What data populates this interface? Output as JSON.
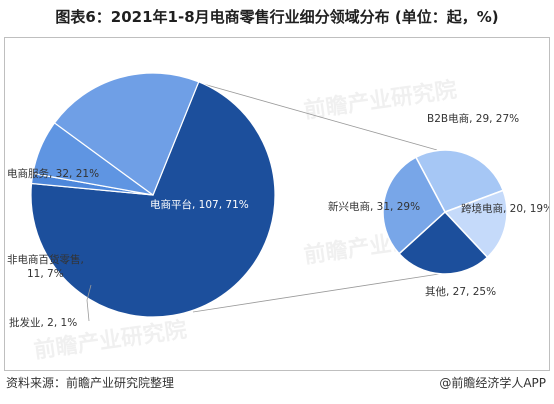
{
  "title": "图表6：2021年1-8月电商零售行业细分领域分布 (单位：起，%)",
  "footer": {
    "source": "资料来源：前瞻产业研究院整理",
    "brand": "@前瞻经济学人APP"
  },
  "watermark": "前瞻产业研究院",
  "colors": {
    "main_platform": "#1c4f9c",
    "service": "#6f9fe6",
    "non_ecommerce": "#5f95e2",
    "wholesale": "#4d87db",
    "b2b": "#a6c7f5",
    "cross_border": "#c5dafa",
    "other": "#1c4f9c",
    "new_ecommerce": "#78a6e8"
  },
  "chart_data": {
    "type": "pie",
    "subtype": "pie-of-pie",
    "main_pie": [
      {
        "label": "电商平台",
        "value": 107,
        "percent": 71,
        "display": "电商平台, 107, 71%"
      },
      {
        "label": "电商服务",
        "value": 32,
        "percent": 21,
        "display": "电商服务, 32, 21%"
      },
      {
        "label": "非电商百货零售",
        "value": 11,
        "percent": 7,
        "display_line1": "非电商百货零售,",
        "display_line2": "11, 7%"
      },
      {
        "label": "批发业",
        "value": 2,
        "percent": 1,
        "display": "批发业, 2, 1%"
      }
    ],
    "secondary_pie": [
      {
        "label": "B2B电商",
        "value": 29,
        "percent": 27,
        "display": "B2B电商, 29, 27%"
      },
      {
        "label": "跨境电商",
        "value": 20,
        "percent": 19,
        "display": "跨境电商, 20, 19%"
      },
      {
        "label": "其他",
        "value": 27,
        "percent": 25,
        "display": "其他, 27, 25%"
      },
      {
        "label": "新兴电商",
        "value": 31,
        "percent": 29,
        "display": "新兴电商, 31, 29%"
      }
    ]
  }
}
